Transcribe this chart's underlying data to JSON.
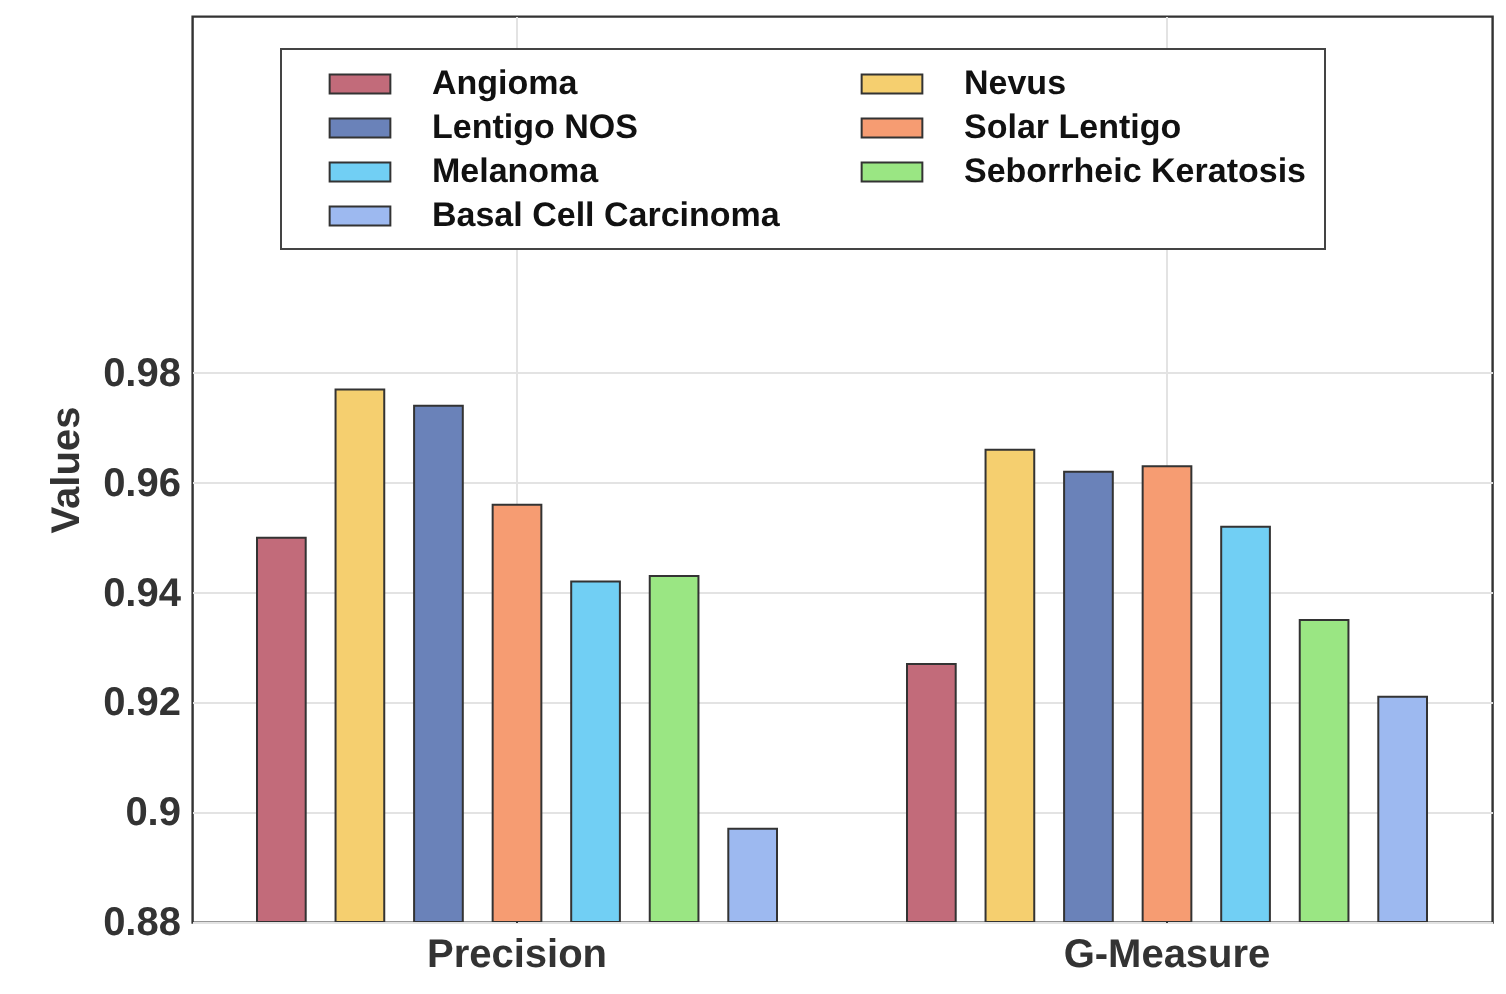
{
  "chart_data": {
    "type": "bar",
    "ylabel": "Values",
    "categories": [
      "Precision",
      "G-Measure"
    ],
    "ylim": [
      0.88,
      1.045
    ],
    "yticks": [
      0.88,
      0.9,
      0.92,
      0.94,
      0.96,
      0.98
    ],
    "grid": true,
    "legend": "top",
    "series": [
      {
        "name": "Angioma",
        "color": "#c26b7a",
        "values": [
          0.95,
          0.927
        ]
      },
      {
        "name": "Nevus",
        "color": "#f5cf6f",
        "values": [
          0.977,
          0.966
        ]
      },
      {
        "name": "Lentigo NOS",
        "color": "#6a82b9",
        "values": [
          0.974,
          0.962
        ]
      },
      {
        "name": "Solar Lentigo",
        "color": "#f69c72",
        "values": [
          0.956,
          0.963
        ]
      },
      {
        "name": "Melanoma",
        "color": "#71cff4",
        "values": [
          0.942,
          0.952
        ]
      },
      {
        "name": "Seborrheic Keratosis",
        "color": "#9ae683",
        "values": [
          0.943,
          0.935
        ]
      },
      {
        "name": "Basal Cell Carcinoma",
        "color": "#9db9f0",
        "values": [
          0.897,
          0.921
        ]
      }
    ]
  }
}
